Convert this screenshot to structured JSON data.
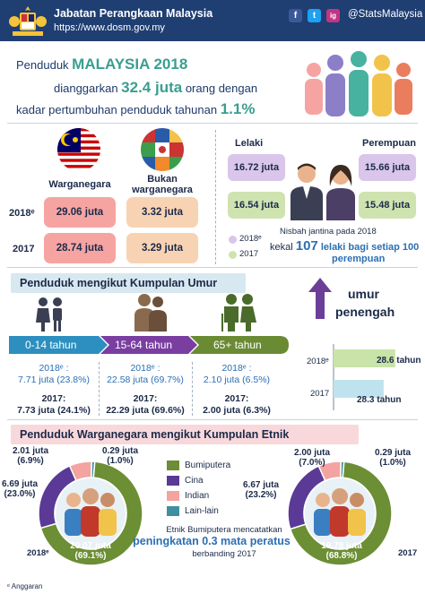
{
  "header": {
    "org_name": "Jabatan Perangkaan Malaysia",
    "website": "https://www.dosm.gov.my",
    "social_handle": "@StatsMalaysia",
    "social": [
      "f",
      "t",
      "ig"
    ]
  },
  "headline": {
    "line1_pre": "Penduduk ",
    "line1_bold": "MALAYSIA 2018",
    "line2_pre": "dianggarkan ",
    "line2_bold": "32.4 juta",
    "line2_post": " orang dengan",
    "line3_pre": "kadar pertumbuhan penduduk tahunan ",
    "line3_bold": "1.1%"
  },
  "citizenship": {
    "citizen_label": "Warganegara",
    "noncitizen_label": "Bukan warganegara",
    "rows": [
      {
        "year": "2018ᵉ",
        "citizen": "29.06 juta",
        "noncitizen": "3.32 juta"
      },
      {
        "year": "2017",
        "citizen": "28.74 juta",
        "noncitizen": "3.29 juta"
      }
    ]
  },
  "gender": {
    "male_label": "Lelaki",
    "female_label": "Perempuan",
    "male_2018": "16.72 juta",
    "male_2017": "16.54 juta",
    "female_2018": "15.66 juta",
    "female_2017": "15.48 juta",
    "legend_2018": "2018ᵉ",
    "legend_2017": "2017",
    "ratio_pre": "Nisbah jantina pada 2018",
    "ratio_mid": "kekal ",
    "ratio_num": "107",
    "ratio_bold": " lelaki bagi setiap 100",
    "ratio_end": "perempuan",
    "colors": {
      "2018": "#d9c6ea",
      "2017": "#cfe3b0"
    }
  },
  "age": {
    "title": "Penduduk mengikut Kumpulan Umur",
    "groups": [
      {
        "label": "0-14 tahun",
        "y2018_label": "2018ᵉ :",
        "y2018": "7.71 juta (23.8%)",
        "y2017_label": "2017:",
        "y2017": "7.73 juta (24.1%)"
      },
      {
        "label": "15-64 tahun",
        "y2018_label": "2018ᵉ :",
        "y2018": "22.58 juta (69.7%)",
        "y2017_label": "2017:",
        "y2017": "22.29 juta (69.6%)"
      },
      {
        "label": "65+ tahun",
        "y2018_label": "2018ᵉ :",
        "y2018": "2.10 juta (6.5%)",
        "y2017_label": "2017:",
        "y2017": "2.00 juta (6.3%)"
      }
    ]
  },
  "median": {
    "title1": "umur",
    "title2": "penengah",
    "bars": [
      {
        "year": "2018ᵉ",
        "value": 28.6,
        "label": "28.6 tahun",
        "color": "#c9e3a8"
      },
      {
        "year": "2017",
        "value": 28.3,
        "label": "28.3 tahun",
        "color": "#bfe3ee"
      }
    ]
  },
  "ethnic": {
    "title": "Penduduk Warganegara mengikut Kumpulan Etnik",
    "legend": [
      {
        "name": "Bumiputera",
        "color": "#6c8e34"
      },
      {
        "name": "Cina",
        "color": "#5a3a96"
      },
      {
        "name": "Indian",
        "color": "#f3a3a0"
      },
      {
        "name": "Lain-lain",
        "color": "#3f8fa0"
      }
    ],
    "left": {
      "year": "2018ᵉ",
      "segments": [
        {
          "name": "Bumiputera",
          "value": 69.1,
          "label": "20.07 juta",
          "pct": "(69.1%)"
        },
        {
          "name": "Cina",
          "value": 23.0,
          "label": "6.69 juta",
          "pct": "(23.0%)"
        },
        {
          "name": "Indian",
          "value": 6.9,
          "label": "2.01 juta",
          "pct": "(6.9%)"
        },
        {
          "name": "Lain-lain",
          "value": 1.0,
          "label": "0.29 juta",
          "pct": "(1.0%)"
        }
      ]
    },
    "right": {
      "year": "2017",
      "segments": [
        {
          "name": "Bumiputera",
          "value": 68.8,
          "label": "19.78 juta",
          "pct": "(68.8%)"
        },
        {
          "name": "Cina",
          "value": 23.2,
          "label": "6.67 juta",
          "pct": "(23.2%)"
        },
        {
          "name": "Indian",
          "value": 7.0,
          "label": "2.00 juta",
          "pct": "(7.0%)"
        },
        {
          "name": "Lain-lain",
          "value": 1.0,
          "label": "0.29 juta",
          "pct": "(1.0%)"
        }
      ]
    },
    "note1": "Etnik Bumiputera mencatatkan",
    "note2": "peningkatan 0.3 mata peratus",
    "note3": "berbanding 2017"
  },
  "footnote": "ᵉ Anggaran"
}
